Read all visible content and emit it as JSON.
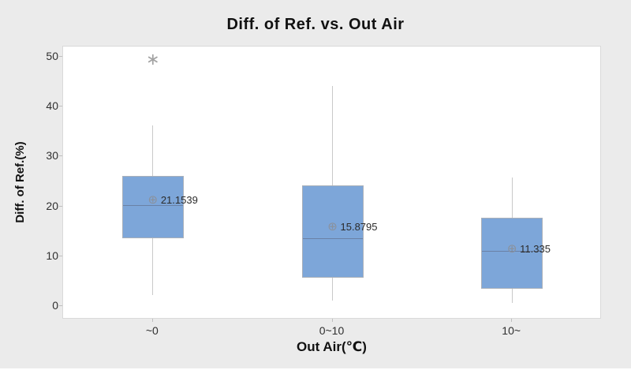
{
  "chart_data": {
    "type": "boxplot",
    "title": "Diff. of Ref. vs. Out Air",
    "xlabel": "Out Air(℃)",
    "ylabel": "Diff. of Ref.(%)",
    "ylim": [
      0,
      50
    ],
    "yticks": [
      0,
      10,
      20,
      30,
      40,
      50
    ],
    "categories": [
      "~0",
      "0~10",
      "10~"
    ],
    "series": [
      {
        "category": "~0",
        "whisker_low": 2.2,
        "q1": 13.6,
        "median": 20.3,
        "q3": 26.1,
        "whisker_high": 36.2,
        "mean": 21.1539,
        "mean_label": "21.1539",
        "outliers": [
          49.4
        ]
      },
      {
        "category": "0~10",
        "whisker_low": 1.1,
        "q1": 5.7,
        "median": 13.6,
        "q3": 24.2,
        "whisker_high": 44.1,
        "mean": 15.8795,
        "mean_label": "15.8795",
        "outliers": []
      },
      {
        "category": "10~",
        "whisker_low": 0.6,
        "q1": 3.5,
        "median": 11.1,
        "q3": 17.7,
        "whisker_high": 25.8,
        "mean": 11.335,
        "mean_label": "11.335",
        "outliers": []
      }
    ],
    "legend": "none",
    "grid": "off",
    "style": {
      "background": "#ebebeb",
      "plot_background": "#ffffff",
      "box_fill": "#7da6d9",
      "box_border": "#a9b0ba",
      "median_color": "#6a81a6",
      "whisker_color": "#c9c9c9",
      "mean_marker_glyph": "⊕",
      "outlier_marker_glyph": "∗",
      "marker_color": "#8a919c",
      "outlier_color": "#a3a3a3"
    }
  }
}
